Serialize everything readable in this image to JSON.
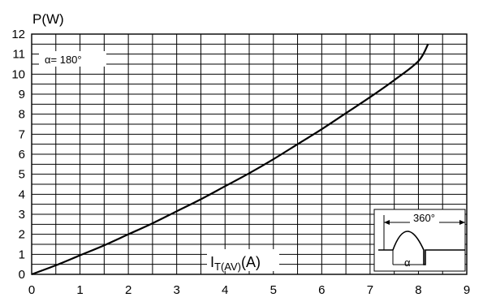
{
  "chart_data": {
    "type": "line",
    "ylabel": "P(W)",
    "xlabel_main": "I",
    "xlabel_sub": "T(AV)",
    "xlabel_unit": "(A)",
    "xlim": [
      0,
      9
    ],
    "ylim": [
      0,
      12
    ],
    "x_ticks": [
      "0",
      "1",
      "2",
      "3",
      "4",
      "5",
      "6",
      "7",
      "8",
      "9"
    ],
    "y_ticks": [
      "0",
      "1",
      "2",
      "3",
      "4",
      "5",
      "6",
      "7",
      "8",
      "9",
      "10",
      "11",
      "12"
    ],
    "grid": true,
    "annotation": "α= 180°",
    "series": [
      {
        "x": [
          0,
          0.5,
          1,
          1.5,
          2,
          2.5,
          3,
          3.5,
          4,
          4.5,
          5,
          5.5,
          6,
          6.5,
          7,
          7.5,
          8,
          8.2
        ],
        "y": [
          0,
          0.45,
          0.95,
          1.45,
          2.0,
          2.55,
          3.15,
          3.75,
          4.4,
          5.05,
          5.75,
          6.5,
          7.25,
          8.05,
          8.85,
          9.7,
          10.65,
          11.5
        ]
      }
    ],
    "inset": {
      "period_label": "360°",
      "angle_label": "α"
    }
  }
}
